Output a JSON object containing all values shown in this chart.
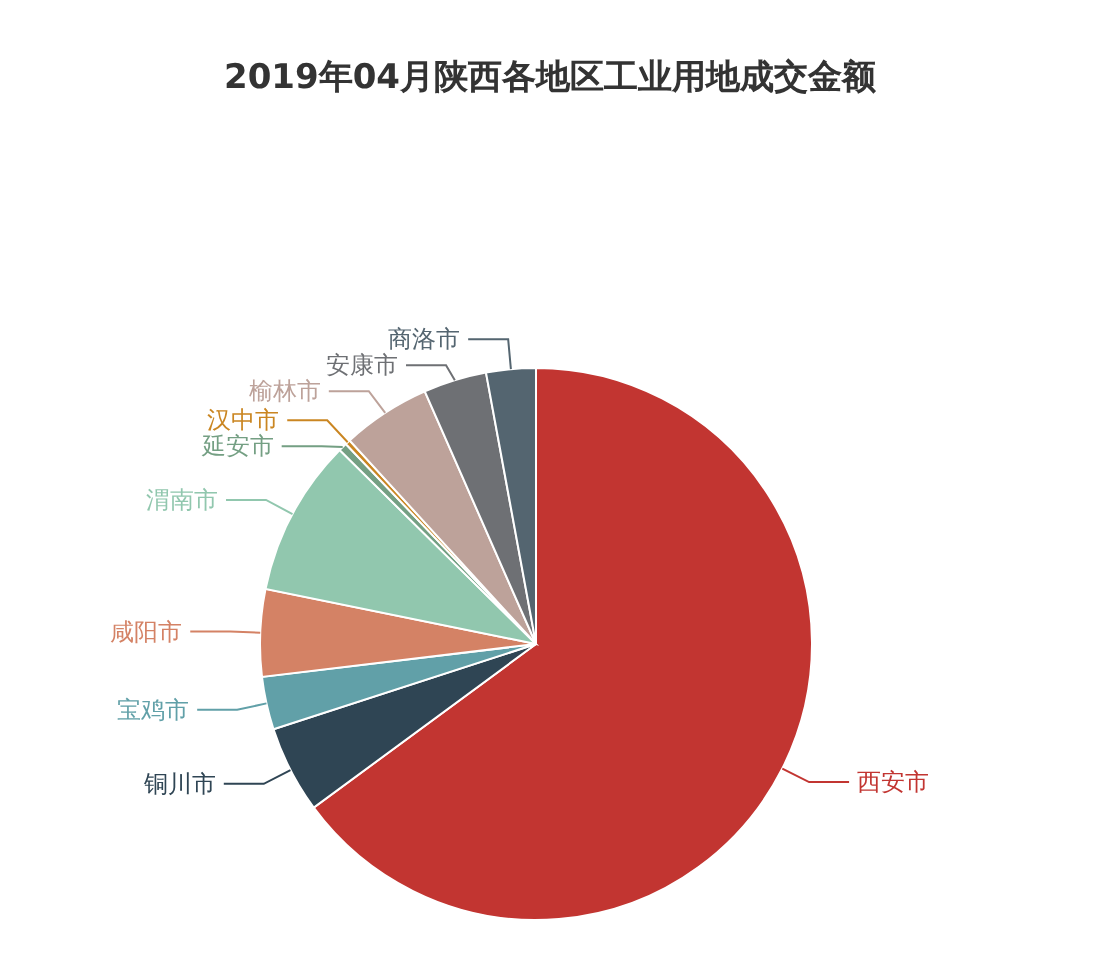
{
  "chart_data": {
    "type": "pie",
    "title": "2019年04月陕西各地区工业用地成交金额",
    "categories": [
      "西安市",
      "铜川市",
      "宝鸡市",
      "咸阳市",
      "渭南市",
      "延安市",
      "汉中市",
      "榆林市",
      "安康市",
      "商洛市"
    ],
    "values": [
      64.9,
      5.1,
      3.1,
      5.1,
      9.2,
      0.5,
      0.3,
      5.2,
      3.7,
      2.9
    ],
    "colors": [
      "#c23531",
      "#2f4554",
      "#61a0a8",
      "#d48265",
      "#91c7ae",
      "#749f83",
      "#ca8622",
      "#bda29a",
      "#6e7074",
      "#546570"
    ],
    "legend": false
  }
}
